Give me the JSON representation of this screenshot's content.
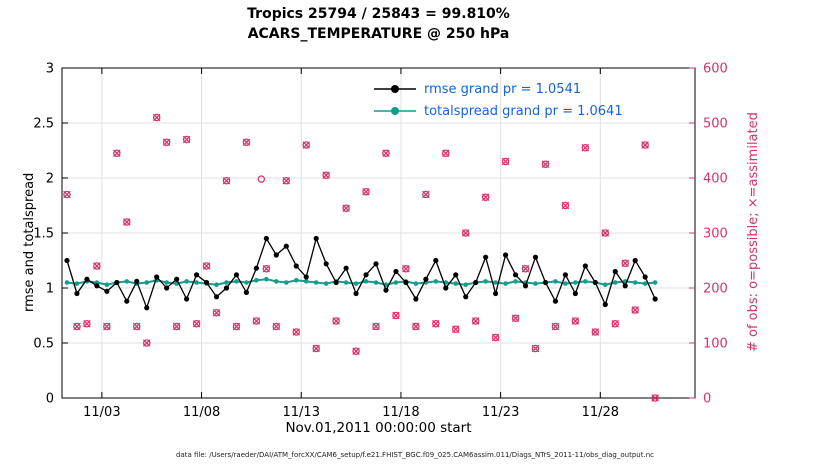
{
  "title_line1": "Tropics 25794 / 25843 = 99.810%",
  "title_line2": "ACARS_TEMPERATURE @ 250 hPa",
  "left_axis": {
    "label": "rmse and totalspread",
    "ticks": [
      0,
      0.5,
      1,
      1.5,
      2,
      2.5,
      3
    ],
    "lim": [
      0,
      3
    ]
  },
  "right_axis": {
    "label": "# of obs: o=possible; ×=assimilated",
    "ticks": [
      0,
      100,
      200,
      300,
      400,
      500,
      600
    ],
    "lim": [
      0,
      600
    ]
  },
  "x_axis": {
    "label": "Nov.01,2011 00:00:00 start",
    "tick_labels": [
      "11/03",
      "11/08",
      "11/13",
      "11/18",
      "11/23",
      "11/28"
    ],
    "tick_days": [
      2,
      7,
      12,
      17,
      22,
      27
    ]
  },
  "legend": [
    {
      "label": "rmse grand pr = 1.0541",
      "series": "rmse"
    },
    {
      "label": "totalspread grand pr = 1.0641",
      "series": "totalspread"
    }
  ],
  "caption": "data file: /Users/raeder/DAI/ATM_forcXX/CAM6_setup/f.e21.FHIST_BGC.f09_025.CAM6assim.011/Diags_NTrS_2011-11/obs_diag_output.nc",
  "colors": {
    "pink": "#D6336C",
    "teal": "#149C8C",
    "black": "#000000",
    "legend_text": "#1464D6",
    "grid": "#E0E0E0"
  },
  "chart_data": {
    "type": "line",
    "xlim": [
      0,
      31.75
    ],
    "x_start": 0.25,
    "x_step": 0.5,
    "left_ylim": [
      0,
      3
    ],
    "right_ylim": [
      0,
      600
    ],
    "grid": true,
    "legend_position": "top-center-inside",
    "series": [
      {
        "name": "rmse",
        "axis": "left",
        "style": "line+dot",
        "color": "#000000",
        "values": [
          1.25,
          0.95,
          1.08,
          1.02,
          0.97,
          1.05,
          0.88,
          1.06,
          0.82,
          1.1,
          1.0,
          1.08,
          0.9,
          1.12,
          1.05,
          0.92,
          1.0,
          1.12,
          0.96,
          1.18,
          1.45,
          1.3,
          1.38,
          1.2,
          1.1,
          1.45,
          1.22,
          1.05,
          1.18,
          0.95,
          1.12,
          1.22,
          0.98,
          1.15,
          1.05,
          0.9,
          1.08,
          1.25,
          1.0,
          1.12,
          0.92,
          1.05,
          1.28,
          0.95,
          1.3,
          1.12,
          1.02,
          1.28,
          1.05,
          0.88,
          1.12,
          0.95,
          1.2,
          1.05,
          0.85,
          1.15,
          1.02,
          1.25,
          1.1,
          0.9
        ]
      },
      {
        "name": "totalspread",
        "axis": "left",
        "style": "line+dot",
        "color": "#149C8C",
        "values": [
          1.05,
          1.04,
          1.06,
          1.05,
          1.03,
          1.05,
          1.06,
          1.04,
          1.05,
          1.07,
          1.05,
          1.04,
          1.06,
          1.05,
          1.04,
          1.03,
          1.05,
          1.06,
          1.05,
          1.07,
          1.08,
          1.06,
          1.05,
          1.07,
          1.06,
          1.05,
          1.04,
          1.06,
          1.05,
          1.04,
          1.06,
          1.05,
          1.03,
          1.05,
          1.06,
          1.04,
          1.05,
          1.06,
          1.05,
          1.04,
          1.03,
          1.05,
          1.06,
          1.05,
          1.04,
          1.06,
          1.05,
          1.04,
          1.05,
          1.06,
          1.04,
          1.05,
          1.06,
          1.05,
          1.03,
          1.05,
          1.06,
          1.05,
          1.04,
          1.05
        ]
      },
      {
        "name": "obs_count",
        "axis": "right",
        "style": "circle+cross",
        "color": "#D6336C",
        "values": [
          370,
          130,
          135,
          240,
          130,
          445,
          320,
          130,
          100,
          510,
          465,
          130,
          470,
          135,
          240,
          155,
          395,
          130,
          465,
          140,
          235,
          130,
          395,
          120,
          460,
          90,
          405,
          140,
          345,
          85,
          375,
          130,
          445,
          150,
          235,
          130,
          370,
          135,
          445,
          125,
          300,
          140,
          365,
          110,
          430,
          145,
          235,
          90,
          425,
          130,
          350,
          140,
          455,
          120,
          300,
          135,
          245,
          160,
          460,
          0
        ]
      }
    ],
    "possible_only_point": {
      "t": 10.0,
      "value": 398
    }
  }
}
